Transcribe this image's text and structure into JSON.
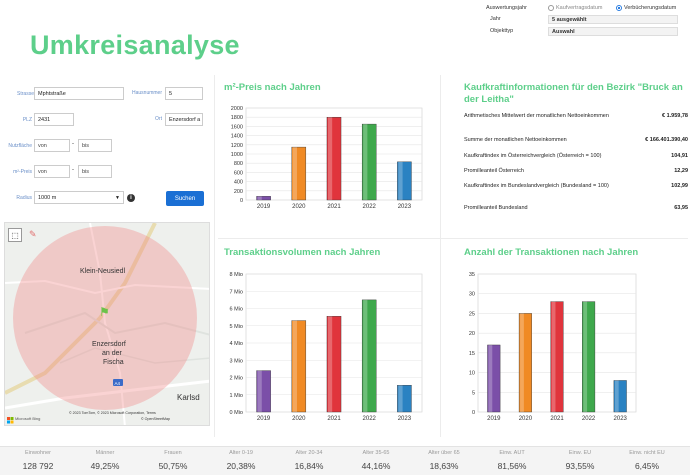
{
  "title": "Umkreisanalyse",
  "filters": {
    "auswertungsjahr_label": "Auswertungsjahr",
    "opt1": "Kaufvertragsdatum",
    "opt2": "Verbücherungsdatum",
    "jahr_label": "Jahr",
    "jahr_value": "5 ausgewählt",
    "objekttyp_label": "Objekttyp",
    "objekttyp_value": "Auswahl"
  },
  "form": {
    "strasse_label": "Strasse",
    "strasse_value": "Mphtstraße",
    "hausnummer_label": "Hausnummer",
    "hausnummer_value": "5",
    "plz_label": "PLZ",
    "plz_value": "2431",
    "ort_label": "Ort",
    "ort_value": "Enzersdorf a",
    "nutzflaeche_label": "Nutzfläche",
    "von1": "von",
    "bis1": "bis",
    "preis_label": "m²-Preis",
    "von2": "von",
    "bis2": "bis",
    "radius_label": "Radius",
    "radius_value": "1000 m",
    "info": "i",
    "suchen": "Suchen"
  },
  "map": {
    "places": [
      "Klein-Neusiedl",
      "Enzersdorf",
      "an der",
      "Fischa",
      "Karlsd"
    ],
    "attribution": "© 2023 TomTom, © 2023 Microsoft Corporation, Terms",
    "attribution2": "© OpenStreetMap",
    "logo": "Microsoft Bing",
    "road": "A4"
  },
  "sections": {
    "preis": "m²-Preis nach Jahren",
    "kaufkraft": "Kaufkraftinformationen für den Bezirk \"Bruck an der Leitha\"",
    "transvol": "Transaktionsvolumen nach Jahren",
    "anzahl": "Anzahl der Transaktionen nach Jahren"
  },
  "kaufkraft": [
    {
      "label": "Arithmetisches Mittelwert der monatlichen Nettoeinkommen",
      "value": "€ 1.959,78"
    },
    {
      "label": "Summe der monatlichen Nettoeinkommen",
      "value": "€ 166.401.390,40"
    },
    {
      "label": "Kaufkraftindex im Österreichvergleich (Österreich = 100)",
      "value": "104,91"
    },
    {
      "label": "Promilleanteil Österreich",
      "value": "12,29"
    },
    {
      "label": "Kaufkraftindex im Bundeslandvergleich (Bundesland = 100)",
      "value": "102,99"
    },
    {
      "label": "Promilleanteil Bundesland",
      "value": "63,95"
    }
  ],
  "colors": {
    "accent": "#5dcf8a",
    "c2019": "#7b4fa8",
    "c2020": "#f08a24",
    "c2021": "#e0343c",
    "c2022": "#3ea84c",
    "c2023": "#2a82c2"
  },
  "chart_data": [
    {
      "type": "bar",
      "title": "m²-Preis nach Jahren",
      "categories": [
        "2019",
        "2020",
        "2021",
        "2022",
        "2023"
      ],
      "values": [
        80,
        1150,
        1800,
        1650,
        830
      ],
      "ylim": [
        0,
        2000
      ],
      "yticks": [
        "0",
        "200",
        "400",
        "600",
        "800",
        "1000",
        "1200",
        "1400",
        "1600",
        "1800",
        "2000"
      ]
    },
    {
      "type": "bar",
      "title": "Transaktionsvolumen nach Jahren",
      "categories": [
        "2019",
        "2020",
        "2021",
        "2022",
        "2023"
      ],
      "values": [
        2.4,
        5.3,
        5.55,
        6.5,
        1.55
      ],
      "ylim": [
        0,
        8
      ],
      "yticks": [
        "0 Mio",
        "1 Mio",
        "2 Mio",
        "3 Mio",
        "4 Mio",
        "5 Mio",
        "6 Mio",
        "7 Mio",
        "8 Mio"
      ]
    },
    {
      "type": "bar",
      "title": "Anzahl der Transaktionen nach Jahren",
      "categories": [
        "2019",
        "2020",
        "2021",
        "2022",
        "2023"
      ],
      "values": [
        17,
        25,
        28,
        28,
        8
      ],
      "ylim": [
        0,
        35
      ],
      "yticks": [
        "0",
        "5",
        "10",
        "15",
        "20",
        "25",
        "30",
        "35"
      ]
    }
  ],
  "stats": [
    {
      "h": "Einwohner",
      "v": "128 792"
    },
    {
      "h": "Männer",
      "v": "49,25%"
    },
    {
      "h": "Frauen",
      "v": "50,75%"
    },
    {
      "h": "Alter 0-19",
      "v": "20,38%"
    },
    {
      "h": "Alter 20-34",
      "v": "16,84%"
    },
    {
      "h": "Alter 35-65",
      "v": "44,16%"
    },
    {
      "h": "Alter über 65",
      "v": "18,63%"
    },
    {
      "h": "Einw. AUT",
      "v": "81,56%"
    },
    {
      "h": "Einw. EU",
      "v": "93,55%"
    },
    {
      "h": "Einw. nicht EU",
      "v": "6,45%"
    }
  ]
}
